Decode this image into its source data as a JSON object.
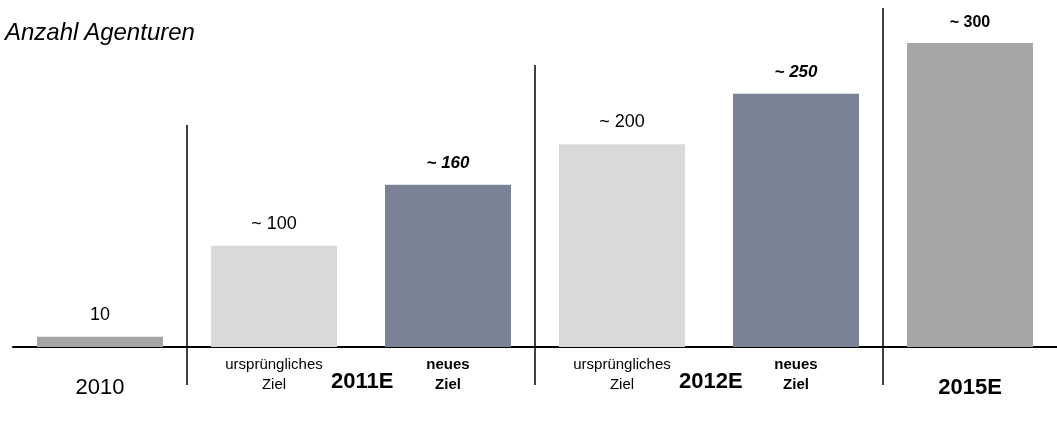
{
  "chart_data": {
    "type": "bar",
    "title": "Anzahl Agenturen",
    "categories": [
      "2010",
      "ursprüngliches Ziel",
      "neues Ziel",
      "ursprüngliches Ziel",
      "neues Ziel",
      "2015E"
    ],
    "values": [
      10,
      100,
      160,
      200,
      250,
      300
    ],
    "colors": [
      "#a6a6a6",
      "#d9d9d9",
      "#7a8396",
      "#d9d9d9",
      "#7a8396",
      "#a6a6a6"
    ],
    "value_labels": [
      "10",
      "~ 100",
      "~ 160",
      "~ 200",
      "~ 250",
      "~ 300"
    ],
    "annotations": [
      "2011E",
      "2012E"
    ],
    "ylim": [
      0,
      300
    ]
  }
}
